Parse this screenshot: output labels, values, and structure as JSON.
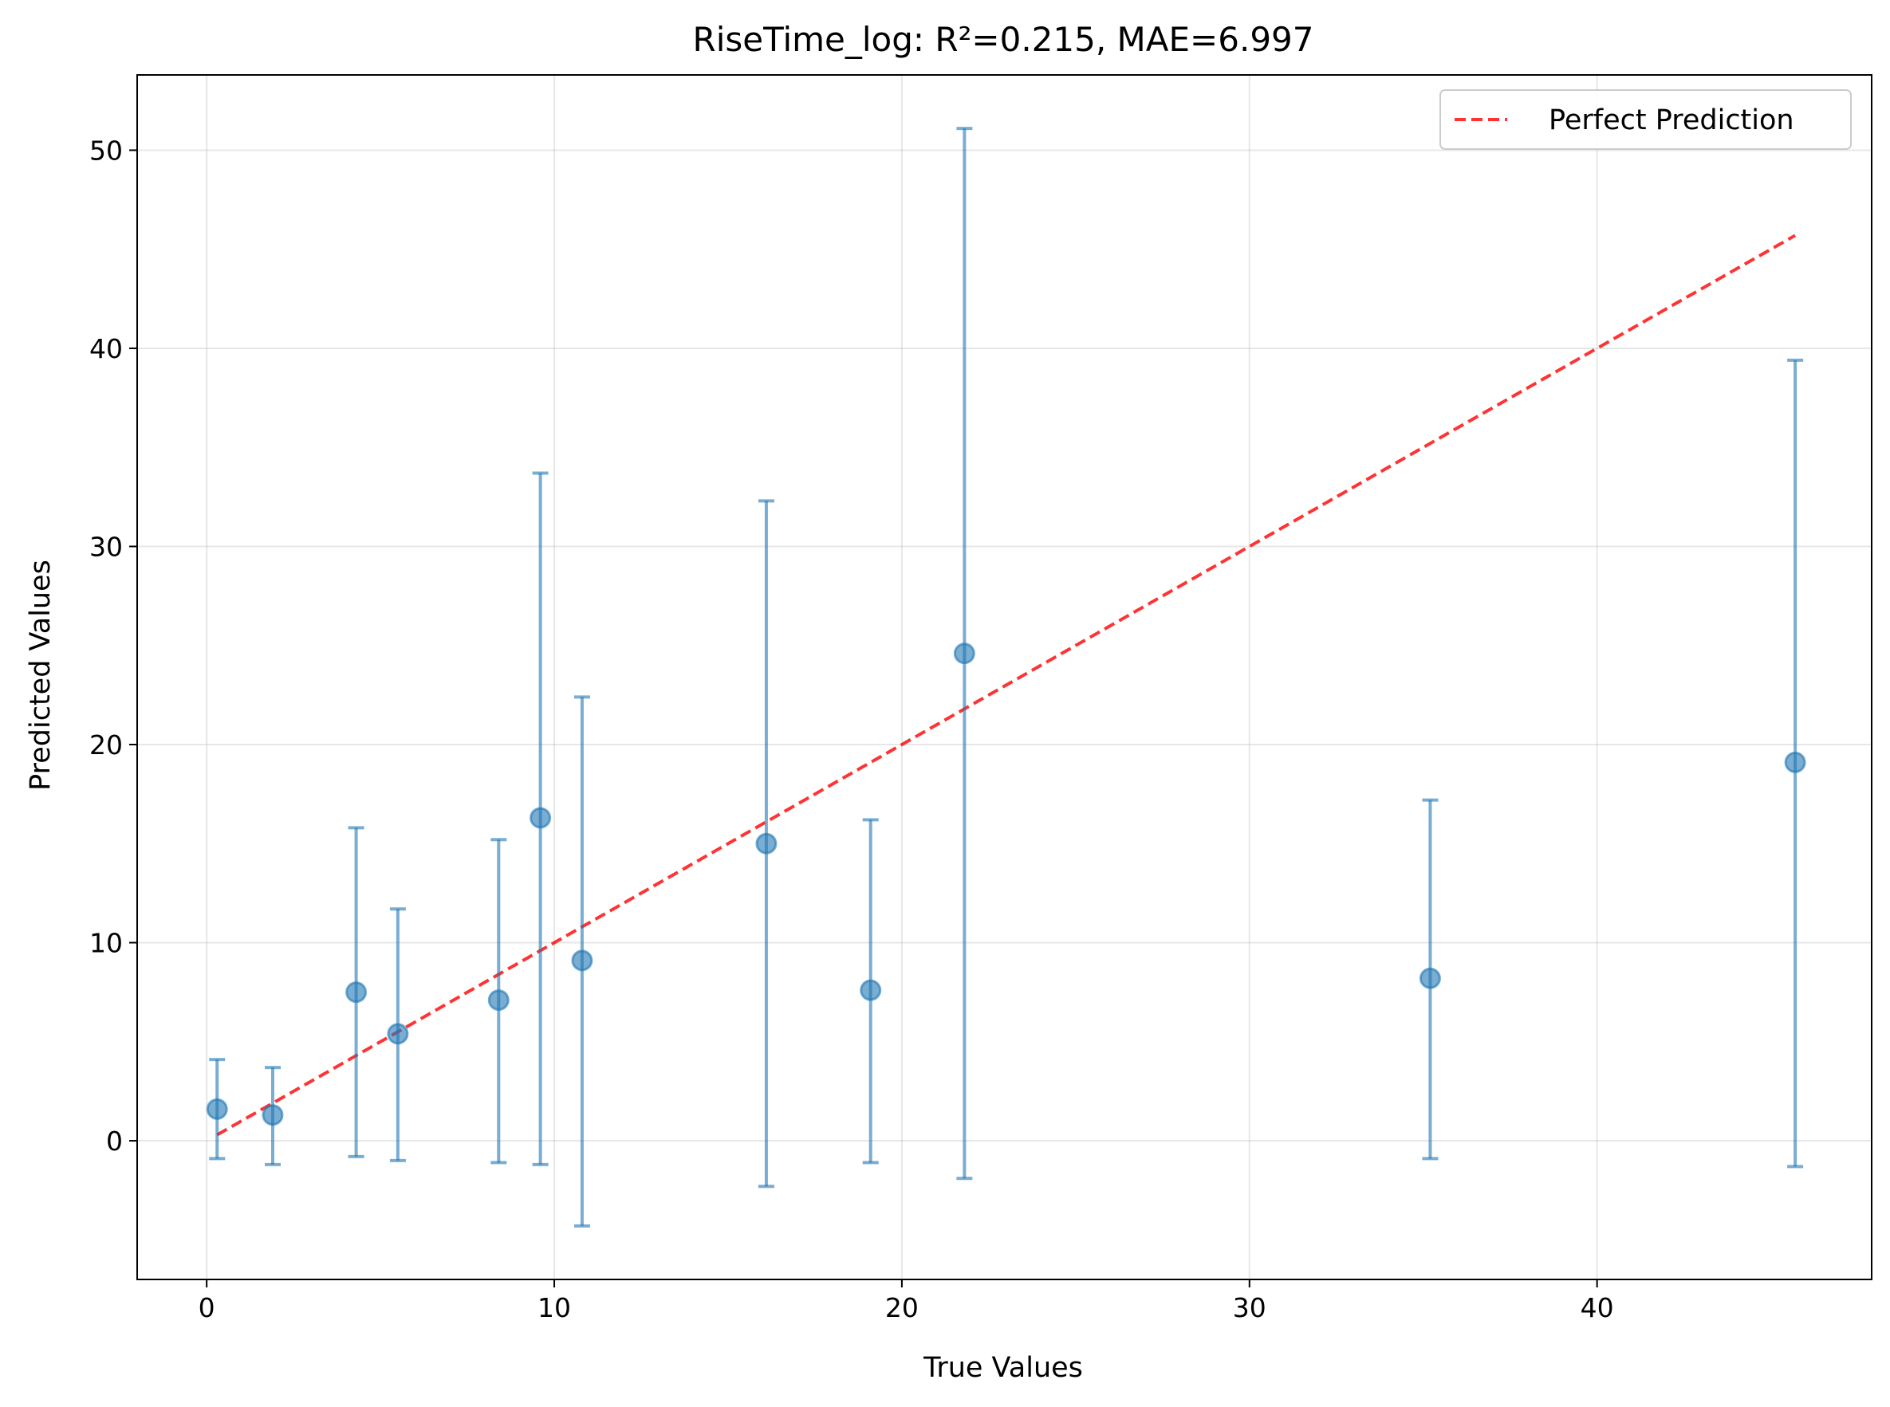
{
  "chart_data": {
    "type": "scatter",
    "title": "RiseTime_log: R²=0.215, MAE=6.997",
    "xlabel": "True Values",
    "ylabel": "Predicted Values",
    "xlim": [
      -2.0,
      47.9
    ],
    "ylim": [
      -7.0,
      53.8
    ],
    "xticks": [
      0,
      10,
      20,
      30,
      40
    ],
    "yticks": [
      0,
      10,
      20,
      30,
      40,
      50
    ],
    "grid": true,
    "legend": {
      "position": "top-right",
      "entries": [
        "Perfect Prediction"
      ]
    },
    "colors": {
      "points": "#1f77b4",
      "reference_line": "#ff0000"
    },
    "reference_line": {
      "name": "Perfect Prediction",
      "x": [
        0.3,
        45.7
      ],
      "y": [
        0.3,
        45.7
      ]
    },
    "series": [
      {
        "points": [
          {
            "x": 0.3,
            "y": 1.6,
            "lower": -0.9,
            "upper": 4.1
          },
          {
            "x": 1.9,
            "y": 1.3,
            "lower": -1.2,
            "upper": 3.7
          },
          {
            "x": 4.3,
            "y": 7.5,
            "lower": -0.8,
            "upper": 15.8
          },
          {
            "x": 5.5,
            "y": 5.4,
            "lower": -1.0,
            "upper": 11.7
          },
          {
            "x": 8.4,
            "y": 7.1,
            "lower": -1.1,
            "upper": 15.2
          },
          {
            "x": 9.6,
            "y": 16.3,
            "lower": -1.2,
            "upper": 33.7
          },
          {
            "x": 10.8,
            "y": 9.1,
            "lower": -4.3,
            "upper": 22.4
          },
          {
            "x": 16.1,
            "y": 15.0,
            "lower": -2.3,
            "upper": 32.3
          },
          {
            "x": 19.1,
            "y": 7.6,
            "lower": -1.1,
            "upper": 16.2
          },
          {
            "x": 21.8,
            "y": 24.6,
            "lower": -1.9,
            "upper": 51.1
          },
          {
            "x": 35.2,
            "y": 8.2,
            "lower": -0.9,
            "upper": 17.2
          },
          {
            "x": 45.7,
            "y": 19.1,
            "lower": -1.3,
            "upper": 39.4
          }
        ]
      }
    ]
  }
}
